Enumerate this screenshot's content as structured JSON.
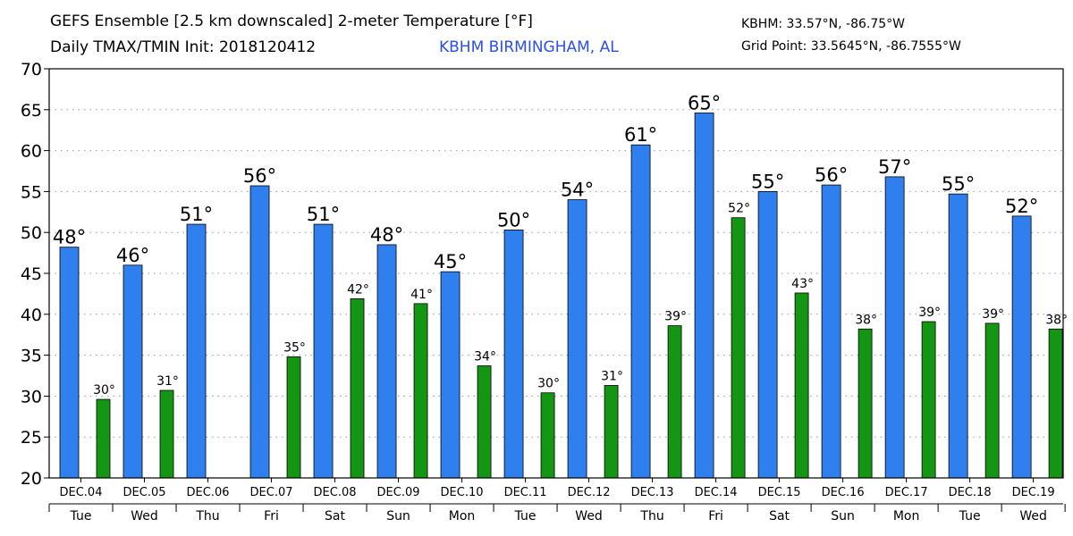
{
  "header": {
    "title_line1": "GEFS Ensemble [2.5 km downscaled] 2-meter Temperature [°F]",
    "title_line2": "Daily TMAX/TMIN Init: 2018120412",
    "location": "KBHM BIRMINGHAM, AL",
    "station_coords": "KBHM: 33.57°N, -86.75°W",
    "grid_point": "Grid Point: 33.5645°N, -86.7555°W"
  },
  "colors": {
    "tmax_bar": "#2f80ee",
    "tmin_bar": "#149614",
    "grid": "#9a9a9a",
    "location_text": "#2b4ff0"
  },
  "chart_data": {
    "type": "bar",
    "title": "GEFS Ensemble [2.5 km downscaled] 2-meter Temperature [°F]",
    "xlabel": "",
    "ylabel": "",
    "ylim": [
      20,
      70
    ],
    "yticks": [
      "20",
      "25",
      "30",
      "35",
      "40",
      "45",
      "50",
      "55",
      "60",
      "65",
      "70"
    ],
    "grid": true,
    "categories": [
      "DEC.04",
      "DEC.05",
      "DEC.06",
      "DEC.07",
      "DEC.08",
      "DEC.09",
      "DEC.10",
      "DEC.11",
      "DEC.12",
      "DEC.13",
      "DEC.14",
      "DEC.15",
      "DEC.16",
      "DEC.17",
      "DEC.18",
      "DEC.19"
    ],
    "weekdays": [
      "Tue",
      "Wed",
      "Thu",
      "Fri",
      "Sat",
      "Sun",
      "Mon",
      "Tue",
      "Wed",
      "Thu",
      "Fri",
      "Sat",
      "Sun",
      "Mon",
      "Tue",
      "Wed"
    ],
    "tmax": {
      "name": "TMAX",
      "values": [
        48.2,
        46.0,
        51.0,
        55.7,
        51.0,
        48.5,
        45.2,
        50.3,
        54.0,
        60.7,
        64.6,
        55.0,
        55.8,
        56.8,
        54.7,
        52.0
      ],
      "labels": [
        "48°",
        "46°",
        "51°",
        "56°",
        "51°",
        "48°",
        "45°",
        "50°",
        "54°",
        "61°",
        "65°",
        "55°",
        "56°",
        "57°",
        "55°",
        "52°"
      ]
    },
    "tmin": {
      "name": "TMIN",
      "values": [
        29.6,
        30.7,
        null,
        34.8,
        41.9,
        41.3,
        33.7,
        30.4,
        31.3,
        38.6,
        51.8,
        42.6,
        38.2,
        39.1,
        38.9,
        38.2
      ],
      "labels": [
        "30°",
        "31°",
        null,
        "35°",
        "42°",
        "41°",
        "34°",
        "30°",
        "31°",
        "39°",
        "52°",
        "43°",
        "38°",
        "39°",
        "39°",
        "38°"
      ]
    }
  }
}
